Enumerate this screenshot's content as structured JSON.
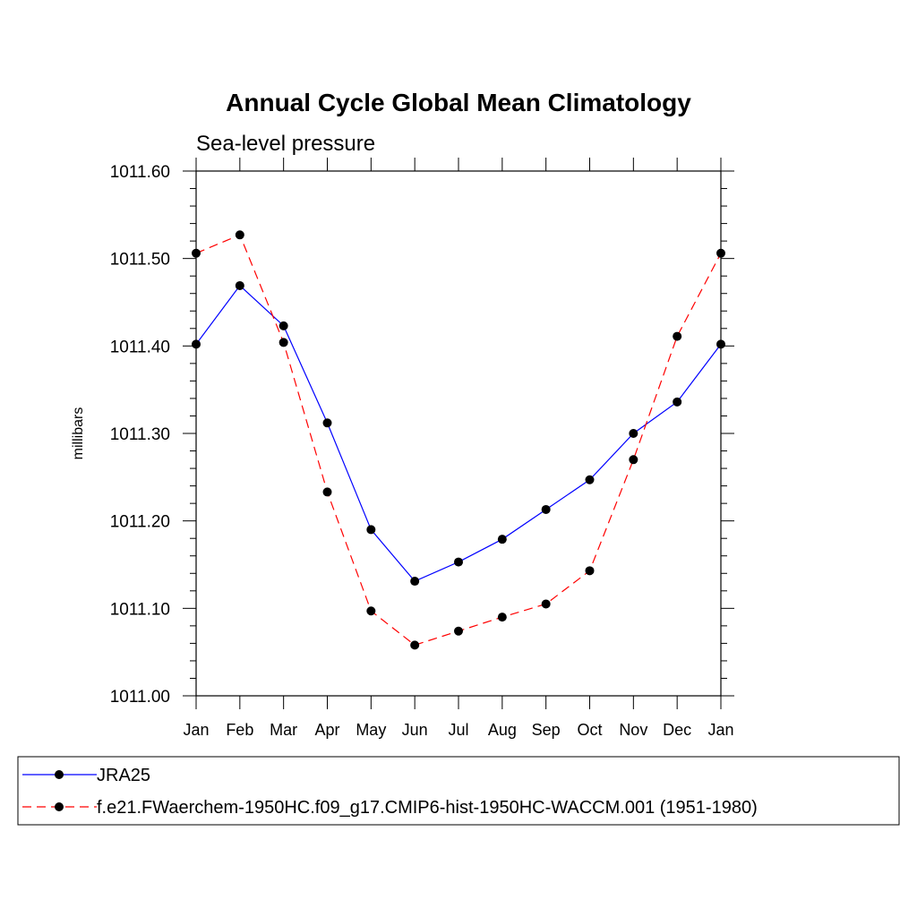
{
  "chart_data": {
    "type": "line",
    "title": "Annual Cycle Global Mean Climatology",
    "subtitle": "Sea-level pressure",
    "xlabel": "",
    "ylabel": "millibars",
    "categories": [
      "Jan",
      "Feb",
      "Mar",
      "Apr",
      "May",
      "Jun",
      "Jul",
      "Aug",
      "Sep",
      "Oct",
      "Nov",
      "Dec",
      "Jan"
    ],
    "ylim": [
      1011.0,
      1011.6
    ],
    "yticks": [
      "1011.00",
      "1011.10",
      "1011.20",
      "1011.30",
      "1011.40",
      "1011.50",
      "1011.60"
    ],
    "ytick_values": [
      1011.0,
      1011.1,
      1011.2,
      1011.3,
      1011.4,
      1011.5,
      1011.6
    ],
    "grid": false,
    "legend_position": "bottom",
    "series": [
      {
        "name": "JRA25",
        "color": "#0000ff",
        "dash": "solid",
        "marker": "circle",
        "values": [
          1011.402,
          1011.469,
          1011.423,
          1011.312,
          1011.19,
          1011.131,
          1011.153,
          1011.179,
          1011.213,
          1011.247,
          1011.3,
          1011.336,
          1011.402
        ]
      },
      {
        "name": "f.e21.FWaerchem-1950HC.f09_g17.CMIP6-hist-1950HC-WACCM.001 (1951-1980)",
        "color": "#ff0000",
        "dash": "dashed",
        "marker": "circle",
        "values": [
          1011.506,
          1011.527,
          1011.404,
          1011.233,
          1011.097,
          1011.058,
          1011.074,
          1011.09,
          1011.105,
          1011.143,
          1011.27,
          1011.411,
          1011.506
        ]
      }
    ]
  }
}
